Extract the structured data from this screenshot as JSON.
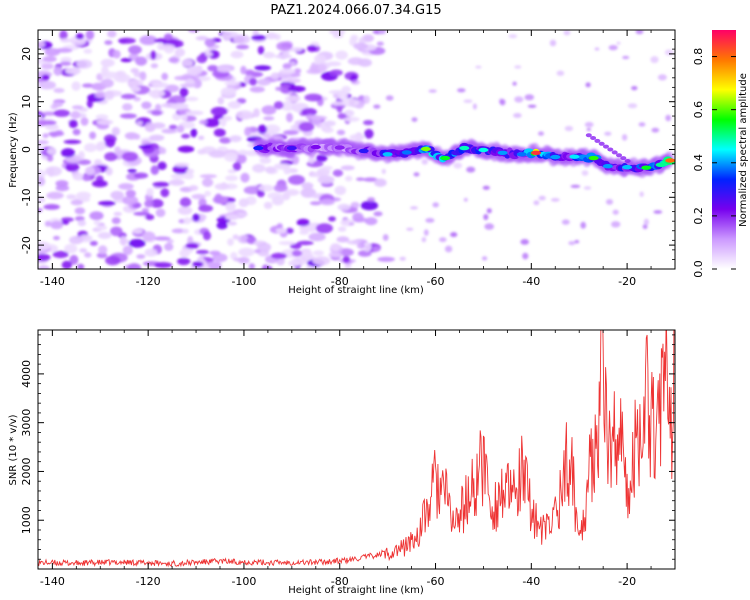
{
  "title": "PAZ1.2024.066.07.34.G15",
  "chart_data": [
    {
      "type": "heatmap",
      "xlabel": "Height of straight line (km)",
      "ylabel": "Frequency (Hz)",
      "xlim": [
        -143,
        -10
      ],
      "ylim": [
        -25,
        25
      ],
      "x_ticks": [
        -140,
        -120,
        -100,
        -80,
        -60,
        -40,
        -20
      ],
      "y_ticks": [
        -20,
        -10,
        0,
        10,
        20
      ],
      "colorbar": {
        "label": "Normalized spectral amplitude",
        "range": [
          0,
          0.9
        ],
        "ticks": [
          0.0,
          0.2,
          0.4,
          0.6,
          0.8
        ],
        "colormap": "gist_rainbow_r",
        "colors": [
          "#ffffff",
          "#cc99ff",
          "#7700ee",
          "#0022ff",
          "#00ffff",
          "#00ff00",
          "#ffff00",
          "#ff7700",
          "#ff0066"
        ]
      },
      "signal_track": [
        {
          "x": -97,
          "y": 0.3,
          "amp": 0.32
        },
        {
          "x": -90,
          "y": 0.3,
          "amp": 0.28
        },
        {
          "x": -85,
          "y": 0.5,
          "amp": 0.22
        },
        {
          "x": -80,
          "y": 0.4,
          "amp": 0.2
        },
        {
          "x": -75,
          "y": -0.3,
          "amp": 0.3
        },
        {
          "x": -70,
          "y": -1.0,
          "amp": 0.42
        },
        {
          "x": -66,
          "y": -0.6,
          "amp": 0.38
        },
        {
          "x": -62,
          "y": 0.1,
          "amp": 0.62
        },
        {
          "x": -58,
          "y": -1.8,
          "amp": 0.55
        },
        {
          "x": -54,
          "y": 0.3,
          "amp": 0.48
        },
        {
          "x": -50,
          "y": -0.1,
          "amp": 0.46
        },
        {
          "x": -46,
          "y": -0.7,
          "amp": 0.4
        },
        {
          "x": -42,
          "y": -1.0,
          "amp": 0.38
        },
        {
          "x": -39,
          "y": -0.7,
          "amp": 0.85
        },
        {
          "x": -35,
          "y": -1.6,
          "amp": 0.4
        },
        {
          "x": -31,
          "y": -1.5,
          "amp": 0.44
        },
        {
          "x": -27,
          "y": -1.8,
          "amp": 0.58
        },
        {
          "x": -24,
          "y": -3.5,
          "amp": 0.4
        },
        {
          "x": -20,
          "y": -3.7,
          "amp": 0.42
        },
        {
          "x": -16,
          "y": -3.8,
          "amp": 0.55
        },
        {
          "x": -13,
          "y": -3.2,
          "amp": 0.5
        },
        {
          "x": -11,
          "y": -2.3,
          "amp": 0.8
        }
      ]
    },
    {
      "type": "line",
      "xlabel": "Height of straight line (km)",
      "ylabel": "SNR (10 * v/v)",
      "xlim": [
        -143,
        -10
      ],
      "ylim": [
        0,
        4900
      ],
      "x_ticks": [
        -140,
        -120,
        -100,
        -80,
        -60,
        -40,
        -20
      ],
      "y_ticks": [
        1000,
        2000,
        3000,
        4000
      ],
      "color": "#ee3333",
      "x": [
        -143,
        -135,
        -125,
        -115,
        -105,
        -95,
        -85,
        -78,
        -74,
        -70,
        -67,
        -64,
        -62,
        -60,
        -58,
        -56,
        -54,
        -52,
        -50,
        -48,
        -46,
        -44,
        -42,
        -40,
        -38,
        -36,
        -34,
        -32,
        -30,
        -28,
        -26,
        -25,
        -24,
        -22,
        -20,
        -18,
        -16,
        -14,
        -12,
        -11,
        -10
      ],
      "y": [
        130,
        120,
        140,
        110,
        160,
        130,
        140,
        180,
        260,
        320,
        420,
        650,
        1100,
        1800,
        1500,
        900,
        1300,
        1650,
        2200,
        1200,
        1650,
        1400,
        1900,
        1300,
        750,
        900,
        1500,
        2400,
        600,
        1800,
        3300,
        4900,
        2200,
        3200,
        1400,
        2800,
        3600,
        3100,
        3900,
        2400,
        4800
      ]
    }
  ]
}
